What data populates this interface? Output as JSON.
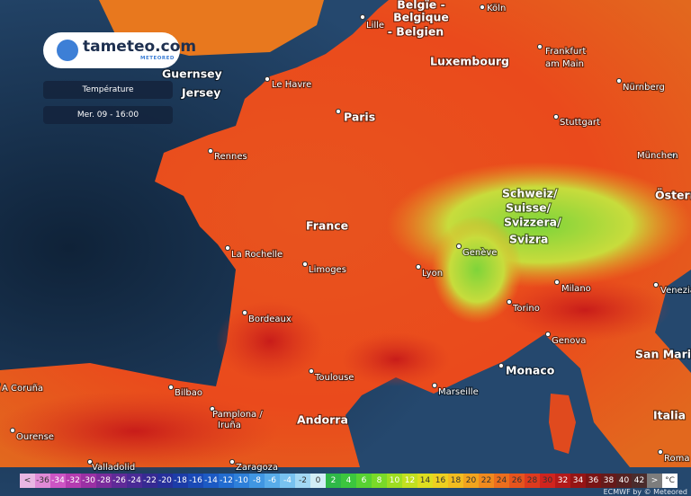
{
  "header": {
    "logo": "tameteo.com",
    "logo_sub": "METEORED"
  },
  "panels": {
    "layer": "Température",
    "time": "Mer. 09 - 16:00"
  },
  "places": [
    "Belgïe -",
    "Belgique",
    "- Belgien",
    "Köln",
    "Lille",
    "Luxembourg",
    "Frankfurt",
    "am Main",
    "Nürnberg",
    "Guernsey",
    "Jersey",
    "Le Havre",
    "Paris",
    "Stuttgart",
    "Rennes",
    "München",
    "Schweiz/",
    "Suisse/",
    "Svizzera/",
    "Svizra",
    "Österr",
    "France",
    "Genève",
    "La Rochelle",
    "Lyon",
    "Limoges",
    "Milano",
    "Venezia",
    "Torino",
    "Bordeaux",
    "Genova",
    "San Marino",
    "Monaco",
    "Toulouse",
    "Marseille",
    "A Coruña",
    "Bilbao",
    "Pamplona /",
    "Iruña",
    "Andorra",
    "Italia",
    "Ourense",
    "Valladolid",
    "Zaragoza",
    "Roma"
  ],
  "legend": {
    "items": [
      {
        "label": "<",
        "color": "#e9b7e3"
      },
      {
        "label": "-36",
        "color": "#e08ad6"
      },
      {
        "label": "-34",
        "color": "#cc55c4"
      },
      {
        "label": "-32",
        "color": "#b43cb0"
      },
      {
        "label": "-30",
        "color": "#9a30a4"
      },
      {
        "label": "-28",
        "color": "#7a2c9c"
      },
      {
        "label": "-26",
        "color": "#602a98"
      },
      {
        "label": "-24",
        "color": "#4a2a96"
      },
      {
        "label": "-22",
        "color": "#362a92"
      },
      {
        "label": "-20",
        "color": "#26309a"
      },
      {
        "label": "-18",
        "color": "#1c3ca8"
      },
      {
        "label": "-16",
        "color": "#1a4ab6"
      },
      {
        "label": "-14",
        "color": "#1c5ac4"
      },
      {
        "label": "-12",
        "color": "#226cd0"
      },
      {
        "label": "-10",
        "color": "#2e80da"
      },
      {
        "label": "-8",
        "color": "#4096e2"
      },
      {
        "label": "-6",
        "color": "#58acea"
      },
      {
        "label": "-4",
        "color": "#78c2f0"
      },
      {
        "label": "-2",
        "color": "#a2d8f4"
      },
      {
        "label": "0",
        "color": "#d2eef6"
      },
      {
        "label": "2",
        "color": "#2fb848"
      },
      {
        "label": "4",
        "color": "#3cc63e"
      },
      {
        "label": "6",
        "color": "#58d232"
      },
      {
        "label": "8",
        "color": "#7ada28"
      },
      {
        "label": "10",
        "color": "#9ede22"
      },
      {
        "label": "12",
        "color": "#c2e020"
      },
      {
        "label": "14",
        "color": "#dede20"
      },
      {
        "label": "16",
        "color": "#eed020"
      },
      {
        "label": "18",
        "color": "#f2bc20"
      },
      {
        "label": "20",
        "color": "#f2a41e"
      },
      {
        "label": "22",
        "color": "#f08a1e"
      },
      {
        "label": "24",
        "color": "#ec6e1e"
      },
      {
        "label": "26",
        "color": "#e6541e"
      },
      {
        "label": "28",
        "color": "#de3a1e"
      },
      {
        "label": "30",
        "color": "#d0241e"
      },
      {
        "label": "32",
        "color": "#b41a1a"
      },
      {
        "label": "34",
        "color": "#961414"
      },
      {
        "label": "36",
        "color": "#7a1414"
      },
      {
        "label": "38",
        "color": "#661a1a"
      },
      {
        "label": "40",
        "color": "#562222"
      },
      {
        "label": "42",
        "color": "#4a2c2c"
      },
      {
        "label": ">",
        "color": "#7d7d7d"
      },
      {
        "label": "°C",
        "color": "#ffffff"
      }
    ]
  },
  "attribution": "ECMWF by © Meteored"
}
